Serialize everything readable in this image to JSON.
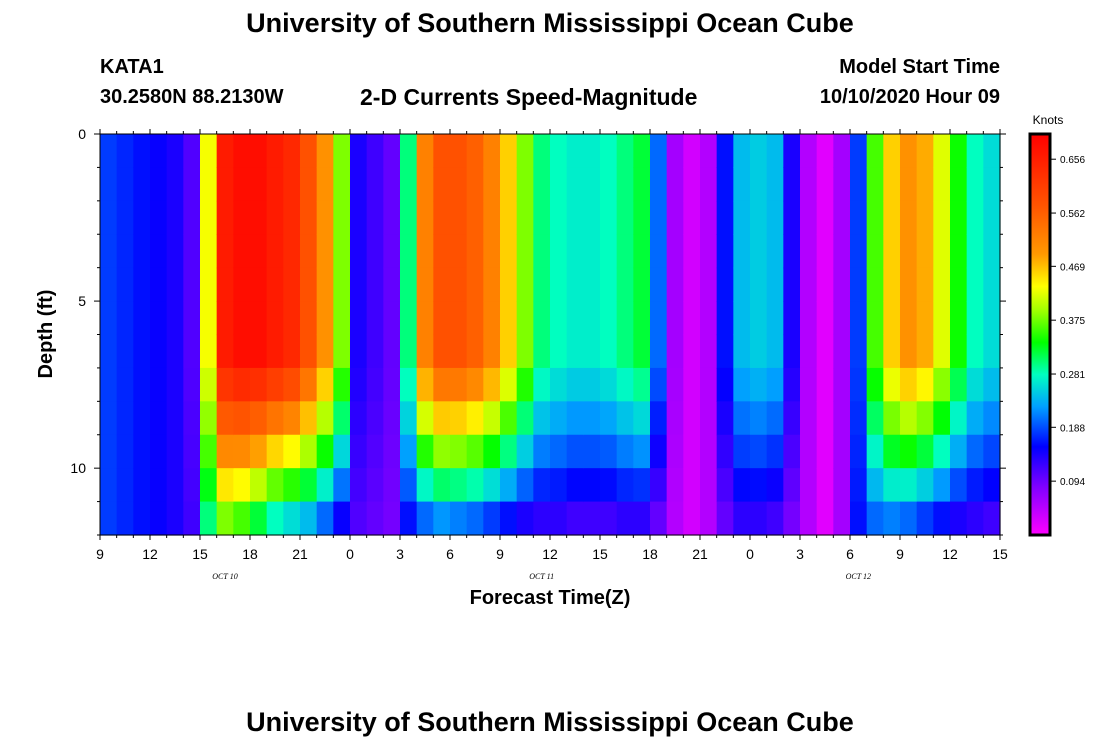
{
  "header": {
    "title": "University of Southern Mississippi Ocean Cube",
    "station": "KATA1",
    "coordinates": "30.2580N 88.2130W",
    "model_start_label": "Model Start Time",
    "model_start_value": "10/10/2020 Hour 09"
  },
  "footer": {
    "title": "University of Southern Mississippi Ocean Cube"
  },
  "chart_data": {
    "type": "heatmap",
    "title": "2-D Currents Speed-Magnitude",
    "xlabel": "Forecast Time(Z)",
    "ylabel": "Depth (ft)",
    "colorbar_label": "Knots",
    "x_tick_labels": [
      "9",
      "12",
      "15",
      "18",
      "21",
      "0",
      "3",
      "6",
      "9",
      "12",
      "15",
      "18",
      "21",
      "0",
      "3",
      "6",
      "9",
      "12",
      "15"
    ],
    "date_labels": [
      {
        "label": "OCT 10",
        "hour": 16.5
      },
      {
        "label": "OCT 11",
        "hour": 35.5
      },
      {
        "label": "OCT 12",
        "hour": 54.5
      }
    ],
    "x_range_hours": [
      0,
      54
    ],
    "y_ticks": [
      0,
      5,
      10
    ],
    "y_range": [
      0,
      12
    ],
    "colorbar_ticks": [
      0.094,
      0.188,
      0.281,
      0.375,
      0.469,
      0.562,
      0.656
    ],
    "colorbar_range": [
      0.0,
      0.7
    ],
    "depth_levels": 12,
    "hours": 54,
    "speed_knots_by_hour_profile": {
      "hour_offsets": [
        0,
        1,
        2,
        3,
        4,
        5,
        6,
        7,
        8,
        9,
        10,
        11,
        12,
        13,
        14,
        15,
        16,
        17,
        18,
        19,
        20,
        21,
        22,
        23,
        24,
        25,
        26,
        27,
        28,
        29,
        30,
        31,
        32,
        33,
        34,
        35,
        36,
        37,
        38,
        39,
        40,
        41,
        42,
        43,
        44,
        45,
        46,
        47,
        48,
        49,
        50,
        51,
        52,
        53
      ],
      "surface_speed": [
        0.18,
        0.17,
        0.16,
        0.15,
        0.14,
        0.11,
        0.43,
        0.66,
        0.68,
        0.68,
        0.66,
        0.64,
        0.58,
        0.5,
        0.38,
        0.14,
        0.12,
        0.1,
        0.3,
        0.52,
        0.58,
        0.58,
        0.56,
        0.52,
        0.46,
        0.38,
        0.3,
        0.28,
        0.27,
        0.27,
        0.28,
        0.3,
        0.32,
        0.2,
        0.06,
        0.03,
        0.05,
        0.16,
        0.24,
        0.25,
        0.24,
        0.14,
        0.05,
        0.02,
        0.06,
        0.18,
        0.36,
        0.46,
        0.5,
        0.48,
        0.42,
        0.34,
        0.28,
        0.26
      ],
      "bottom_speed": [
        0.18,
        0.17,
        0.16,
        0.15,
        0.14,
        0.12,
        0.3,
        0.38,
        0.36,
        0.32,
        0.28,
        0.26,
        0.24,
        0.2,
        0.15,
        0.11,
        0.1,
        0.09,
        0.16,
        0.2,
        0.22,
        0.21,
        0.2,
        0.18,
        0.16,
        0.14,
        0.13,
        0.13,
        0.12,
        0.12,
        0.12,
        0.13,
        0.13,
        0.1,
        0.05,
        0.03,
        0.05,
        0.1,
        0.13,
        0.13,
        0.12,
        0.09,
        0.05,
        0.02,
        0.06,
        0.16,
        0.2,
        0.21,
        0.2,
        0.18,
        0.16,
        0.14,
        0.13,
        0.12
      ]
    }
  }
}
